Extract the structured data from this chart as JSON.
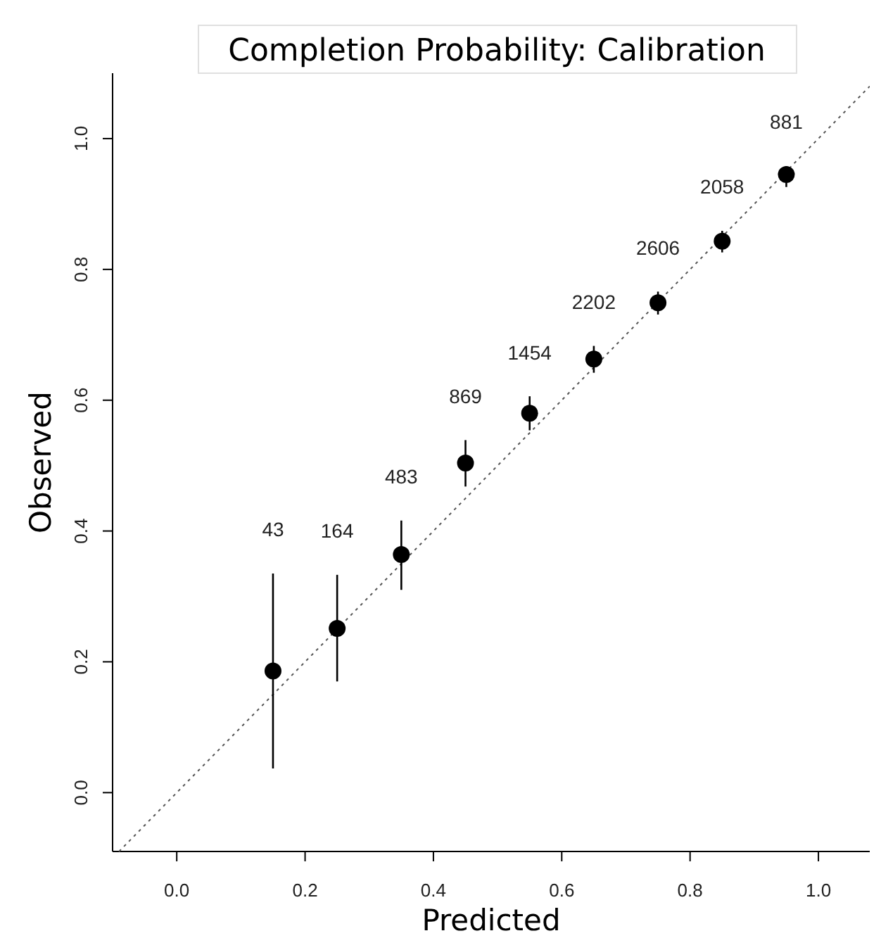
{
  "chart_data": {
    "type": "scatter",
    "title": "Completion Probability: Calibration",
    "xlabel": "Predicted",
    "ylabel": "Observed",
    "xlim": [
      -0.1,
      1.08
    ],
    "ylim": [
      -0.09,
      1.1
    ],
    "xticks": [
      {
        "value": 0,
        "label": "0.0"
      },
      {
        "value": 0.2,
        "label": "0.2"
      },
      {
        "value": 0.4,
        "label": "0.4"
      },
      {
        "value": 0.6,
        "label": "0.6"
      },
      {
        "value": 0.8,
        "label": "0.8"
      },
      {
        "value": 1,
        "label": "1.0"
      }
    ],
    "yticks": [
      {
        "value": 0,
        "label": "0.0"
      },
      {
        "value": 0.2,
        "label": "0.2"
      },
      {
        "value": 0.4,
        "label": "0.4"
      },
      {
        "value": 0.6,
        "label": "0.6"
      },
      {
        "value": 0.8,
        "label": "0.8"
      },
      {
        "value": 1,
        "label": "1.0"
      }
    ],
    "grid": false,
    "marker": "circle",
    "series": [
      {
        "color": "#000000",
        "x": [
          0.15,
          0.25,
          0.35,
          0.45,
          0.55,
          0.65,
          0.75,
          0.85,
          0.95
        ],
        "values": [
          0.186,
          0.251,
          0.364,
          0.504,
          0.58,
          0.663,
          0.749,
          0.843,
          0.945
        ],
        "errors": [
          [
            0.037,
            0.335
          ],
          [
            0.17,
            0.333
          ],
          [
            0.31,
            0.416
          ],
          [
            0.468,
            0.539
          ],
          [
            0.554,
            0.606
          ],
          [
            0.642,
            0.683
          ],
          [
            0.731,
            0.766
          ],
          [
            0.826,
            0.859
          ],
          [
            0.926,
            0.958
          ]
        ]
      },
      {
        "type": "line",
        "color": "#555555",
        "line_style": "dotted",
        "marker": "none",
        "x": [
          -0.09,
          1.08
        ],
        "values": [
          -0.09,
          1.08
        ]
      }
    ],
    "annotations": [
      "43",
      "164",
      "483",
      "869",
      "1454",
      "2202",
      "2606",
      "2058",
      "881"
    ]
  }
}
